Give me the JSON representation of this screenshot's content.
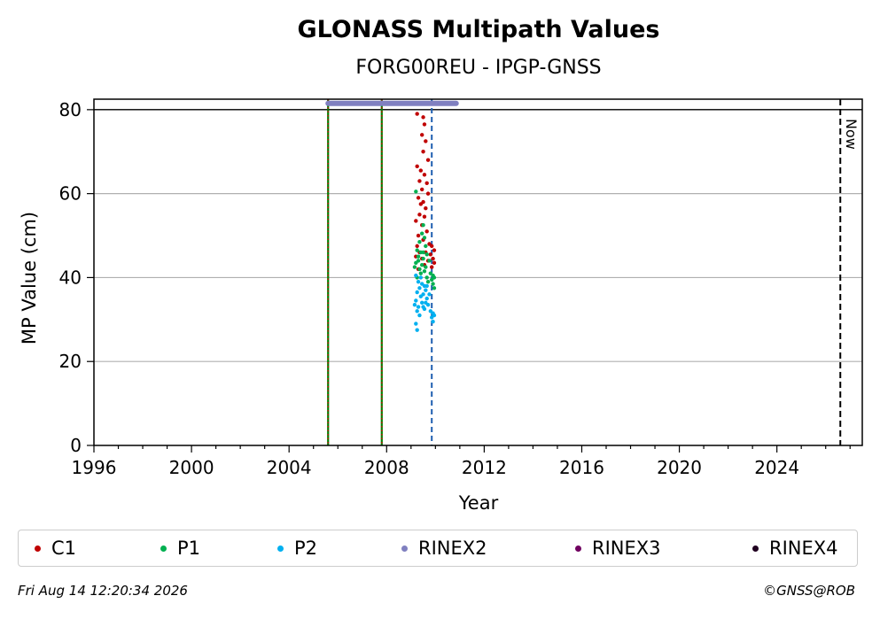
{
  "chart_data": {
    "type": "scatter",
    "title": "GLONASS Multipath Values",
    "subtitle": "FORG00REU - IPGP-GNSS",
    "xlabel": "Year",
    "ylabel": "MP Value (cm)",
    "xlim": [
      1996,
      2027.5
    ],
    "ylim": [
      0,
      82.5
    ],
    "x_ticks": [
      1996,
      2000,
      2004,
      2008,
      2012,
      2016,
      2020,
      2024
    ],
    "y_ticks": [
      0,
      20,
      40,
      60,
      80
    ],
    "grid": "horizontal",
    "reference_line_y": 80,
    "now_label": "Now",
    "now_x": 2026.6,
    "vertical_events": [
      {
        "x": 2005.6,
        "style": "green-red-dotted"
      },
      {
        "x": 2007.8,
        "style": "green-red-dotted"
      },
      {
        "x": 2009.85,
        "style": "blue-dashed"
      }
    ],
    "series": [
      {
        "name": "C1",
        "color": "#c00000",
        "points": [
          [
            2009.25,
            79.0
          ],
          [
            2009.5,
            78.2
          ],
          [
            2009.55,
            76.5
          ],
          [
            2009.45,
            74.0
          ],
          [
            2009.6,
            72.5
          ],
          [
            2009.5,
            70.0
          ],
          [
            2009.7,
            68.0
          ],
          [
            2009.25,
            66.5
          ],
          [
            2009.4,
            65.5
          ],
          [
            2009.55,
            64.5
          ],
          [
            2009.35,
            63.0
          ],
          [
            2009.65,
            62.5
          ],
          [
            2009.45,
            61.0
          ],
          [
            2009.7,
            60.0
          ],
          [
            2009.3,
            59.0
          ],
          [
            2009.5,
            58.0
          ],
          [
            2009.4,
            57.5
          ],
          [
            2009.6,
            56.5
          ],
          [
            2009.35,
            55.0
          ],
          [
            2009.55,
            54.5
          ],
          [
            2009.2,
            53.5
          ],
          [
            2009.45,
            52.5
          ],
          [
            2009.65,
            51.0
          ],
          [
            2009.3,
            50.0
          ],
          [
            2009.5,
            49.0
          ],
          [
            2009.75,
            48.0
          ],
          [
            2009.85,
            47.5
          ],
          [
            2009.95,
            46.5
          ],
          [
            2009.8,
            45.5
          ],
          [
            2009.9,
            44.5
          ],
          [
            2009.25,
            47.5
          ],
          [
            2009.35,
            46.0
          ],
          [
            2009.6,
            46.0
          ],
          [
            2009.7,
            44.0
          ],
          [
            2009.95,
            43.5
          ],
          [
            2009.85,
            42.5
          ],
          [
            2009.2,
            45.0
          ],
          [
            2009.45,
            44.5
          ],
          [
            2009.55,
            43.0
          ],
          [
            2009.3,
            42.0
          ]
        ]
      },
      {
        "name": "P1",
        "color": "#00b050",
        "points": [
          [
            2009.2,
            60.5
          ],
          [
            2009.5,
            52.5
          ],
          [
            2009.45,
            50.5
          ],
          [
            2009.55,
            49.5
          ],
          [
            2009.35,
            48.5
          ],
          [
            2009.6,
            47.5
          ],
          [
            2009.25,
            46.5
          ],
          [
            2009.4,
            46.0
          ],
          [
            2009.65,
            45.5
          ],
          [
            2009.3,
            45.0
          ],
          [
            2009.5,
            44.5
          ],
          [
            2009.75,
            44.0
          ],
          [
            2009.2,
            43.5
          ],
          [
            2009.45,
            43.0
          ],
          [
            2009.6,
            42.5
          ],
          [
            2009.35,
            42.0
          ],
          [
            2009.55,
            41.5
          ],
          [
            2009.8,
            41.0
          ],
          [
            2009.9,
            40.5
          ],
          [
            2009.95,
            40.0
          ],
          [
            2009.85,
            39.5
          ],
          [
            2009.7,
            39.0
          ],
          [
            2009.25,
            40.0
          ],
          [
            2009.4,
            41.0
          ],
          [
            2009.9,
            38.5
          ],
          [
            2009.95,
            37.5
          ],
          [
            2009.15,
            42.5
          ],
          [
            2009.65,
            40.0
          ],
          [
            2009.3,
            44.0
          ],
          [
            2009.5,
            46.0
          ]
        ]
      },
      {
        "name": "P2",
        "color": "#00b0f0",
        "points": [
          [
            2009.2,
            40.5
          ],
          [
            2009.3,
            39.0
          ],
          [
            2009.45,
            38.5
          ],
          [
            2009.55,
            38.0
          ],
          [
            2009.35,
            37.5
          ],
          [
            2009.6,
            37.0
          ],
          [
            2009.25,
            36.5
          ],
          [
            2009.5,
            36.0
          ],
          [
            2009.4,
            35.5
          ],
          [
            2009.65,
            35.0
          ],
          [
            2009.2,
            34.5
          ],
          [
            2009.45,
            34.0
          ],
          [
            2009.7,
            33.5
          ],
          [
            2009.3,
            33.0
          ],
          [
            2009.55,
            32.5
          ],
          [
            2009.8,
            32.0
          ],
          [
            2009.9,
            31.5
          ],
          [
            2009.95,
            31.0
          ],
          [
            2009.85,
            30.5
          ],
          [
            2009.9,
            29.5
          ],
          [
            2009.25,
            32.0
          ],
          [
            2009.35,
            31.0
          ],
          [
            2009.15,
            33.5
          ],
          [
            2009.6,
            34.0
          ],
          [
            2009.75,
            36.0
          ],
          [
            2009.2,
            29.0
          ],
          [
            2009.25,
            27.5
          ],
          [
            2009.5,
            33.0
          ],
          [
            2009.65,
            38.0
          ],
          [
            2009.4,
            40.0
          ]
        ]
      },
      {
        "name": "RINEX2",
        "color": "#8080c0",
        "range": [
          2005.6,
          2010.85
        ],
        "y": 81.5
      },
      {
        "name": "RINEX3",
        "color": "#700060",
        "points": []
      },
      {
        "name": "RINEX4",
        "color": "#200020",
        "points": []
      }
    ]
  },
  "footer": {
    "timestamp": "Fri Aug 14 12:20:34 2026",
    "copyright": "©GNSS@ROB"
  }
}
